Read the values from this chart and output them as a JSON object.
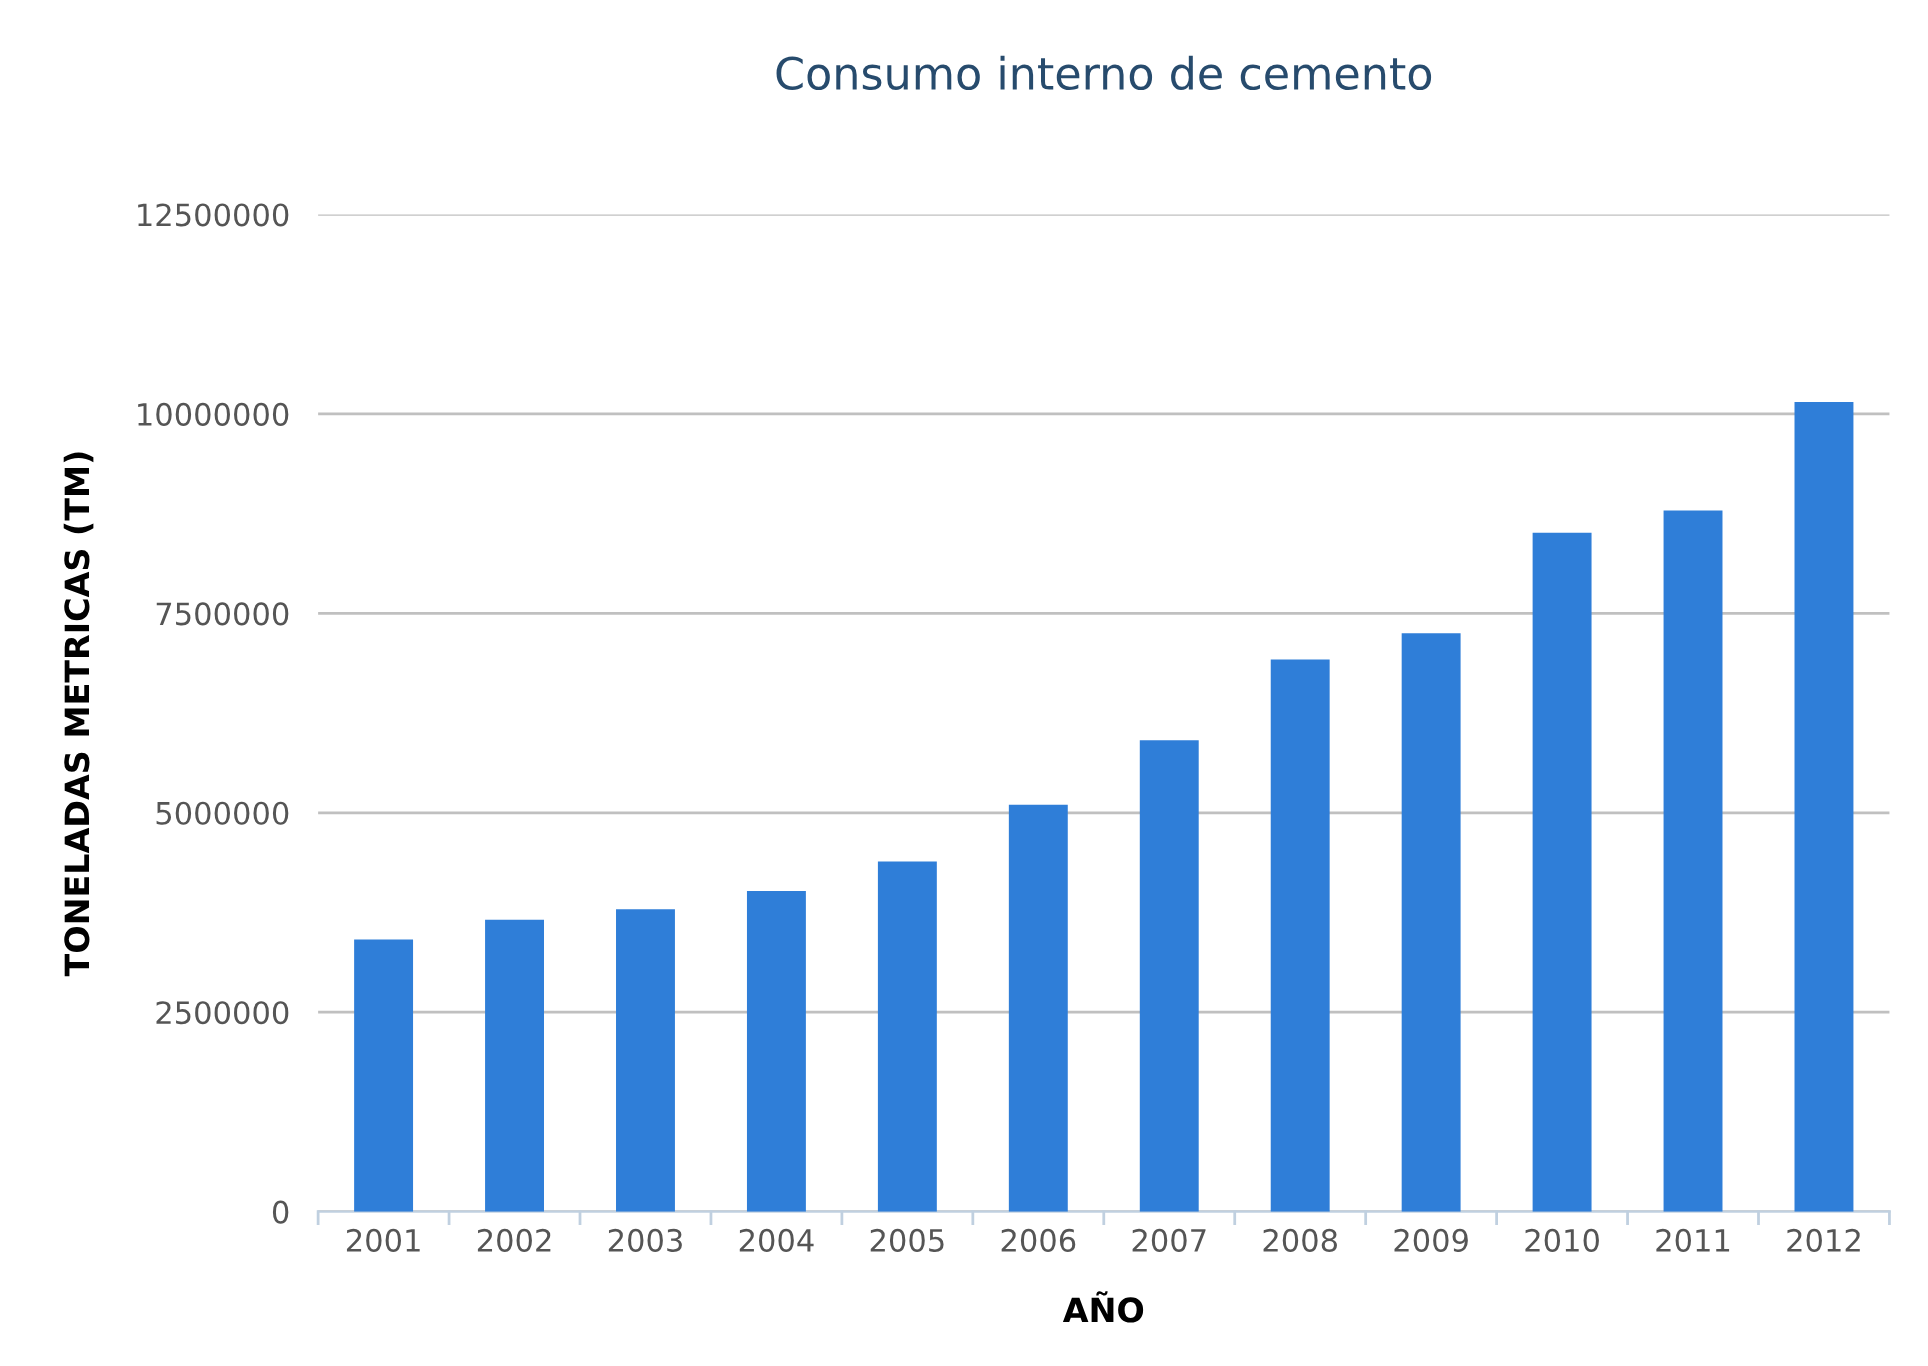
{
  "chart_data": {
    "type": "bar",
    "title": "Consumo interno de cemento",
    "xlabel": "AÑO",
    "ylabel": "TONELADAS METRICAS (TM)",
    "categories": [
      "2001",
      "2002",
      "2003",
      "2004",
      "2005",
      "2006",
      "2007",
      "2008",
      "2009",
      "2010",
      "2011",
      "2012"
    ],
    "values": [
      3410000,
      3660000,
      3790000,
      4020000,
      4390000,
      5100000,
      5910000,
      6920000,
      7250000,
      8510000,
      8790000,
      10150000
    ],
    "color": "#2f7ed8",
    "ylim": [
      0,
      12500000
    ],
    "yticks": [
      0,
      2500000,
      5000000,
      7500000,
      10000000,
      12500000
    ],
    "grid": "y"
  }
}
